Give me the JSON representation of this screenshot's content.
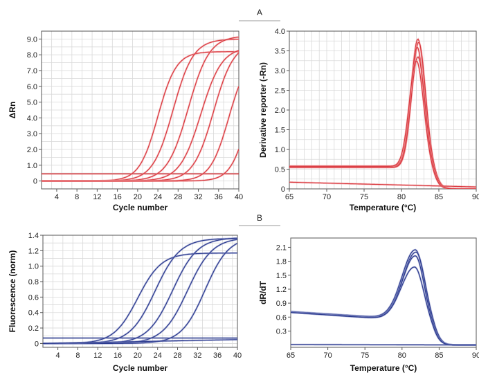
{
  "panel_labels": {
    "a": "A",
    "b": "B"
  },
  "colors": {
    "red": "#d9383e",
    "red_light": "#f09a9c",
    "blue": "#2b3a8e",
    "blue_light": "#8a92c8"
  },
  "chart_data": [
    {
      "id": "a_amplification",
      "type": "line",
      "title": "",
      "xlabel": "Cycle number",
      "ylabel": "ΔRn",
      "xlim": [
        1,
        40
      ],
      "ylim": [
        -0.5,
        9.5
      ],
      "xticks": [
        4,
        8,
        12,
        16,
        20,
        24,
        28,
        32,
        36,
        40
      ],
      "yticks": [
        0,
        1.0,
        2.0,
        3.0,
        4.0,
        5.0,
        6.0,
        7.0,
        8.0,
        9.0
      ],
      "ytick_labels": [
        "0",
        "1.0",
        "2.0",
        "3.0",
        "4.0",
        "5.0",
        "6.0",
        "7.0",
        "8.0",
        "9.0"
      ],
      "grid": true,
      "threshold": 0.45,
      "series": [
        {
          "kind": "sigmoid",
          "top": 8.2,
          "mid": 24.0,
          "k": 0.55
        },
        {
          "kind": "sigmoid",
          "top": 9.0,
          "mid": 27.0,
          "k": 0.5
        },
        {
          "kind": "sigmoid",
          "top": 9.2,
          "mid": 30.0,
          "k": 0.48
        },
        {
          "kind": "sigmoid",
          "top": 8.5,
          "mid": 32.5,
          "k": 0.48
        },
        {
          "kind": "sigmoid",
          "top": 8.8,
          "mid": 35.0,
          "k": 0.5
        },
        {
          "kind": "sigmoid",
          "top": 8.0,
          "mid": 38.0,
          "k": 0.55
        },
        {
          "kind": "sigmoid",
          "top": 7.0,
          "mid": 41.5,
          "k": 0.6
        }
      ]
    },
    {
      "id": "a_melt",
      "type": "line",
      "title": "",
      "xlabel": "Temperature (°C)",
      "ylabel": "Derivative reporter (-Rn)",
      "xlim": [
        65,
        90
      ],
      "ylim": [
        0,
        4.0
      ],
      "xticks": [
        65,
        70,
        75,
        80,
        85,
        90
      ],
      "yticks": [
        0,
        0.5,
        1.0,
        1.5,
        2.0,
        2.5,
        3.0,
        3.5,
        4.0
      ],
      "ytick_labels": [
        "0",
        "0.5",
        "1.0",
        "1.5",
        "2.0",
        "2.5",
        "3.0",
        "3.5",
        "4.0"
      ],
      "grid": true,
      "series": [
        {
          "kind": "melt",
          "base": 0.58,
          "peak": 3.8,
          "center": 82.2,
          "width": 1.3
        },
        {
          "kind": "melt",
          "base": 0.55,
          "peak": 3.72,
          "center": 82.3,
          "width": 1.3
        },
        {
          "kind": "melt",
          "base": 0.56,
          "peak": 3.6,
          "center": 82.1,
          "width": 1.25
        },
        {
          "kind": "melt",
          "base": 0.54,
          "peak": 3.35,
          "center": 82.2,
          "width": 1.3
        },
        {
          "kind": "melt",
          "base": 0.57,
          "peak": 3.25,
          "center": 82.0,
          "width": 1.35
        },
        {
          "kind": "flat",
          "start": 0.17,
          "end": 0.05
        }
      ]
    },
    {
      "id": "b_amplification",
      "type": "line",
      "title": "",
      "xlabel": "Cycle number",
      "ylabel": "Fluorescence (norm)",
      "xlim": [
        1,
        40
      ],
      "ylim": [
        -0.05,
        1.4
      ],
      "xticks": [
        4,
        8,
        12,
        16,
        20,
        24,
        28,
        32,
        36,
        40
      ],
      "yticks": [
        0,
        0.2,
        0.4,
        0.6,
        0.8,
        1.0,
        1.2,
        1.4
      ],
      "ytick_labels": [
        "0",
        "0.2",
        "0.4",
        "0.6",
        "0.8",
        "1.0",
        "1.2",
        "1.4"
      ],
      "grid": true,
      "threshold": 0.07,
      "series": [
        {
          "kind": "sigmoid",
          "top": 1.17,
          "mid": 20.0,
          "k": 0.42
        },
        {
          "kind": "sigmoid",
          "top": 1.36,
          "mid": 23.5,
          "k": 0.4
        },
        {
          "kind": "sigmoid",
          "top": 1.37,
          "mid": 27.0,
          "k": 0.4
        },
        {
          "kind": "sigmoid",
          "top": 1.37,
          "mid": 30.0,
          "k": 0.4
        },
        {
          "kind": "sigmoid",
          "top": 1.38,
          "mid": 33.5,
          "k": 0.42
        },
        {
          "kind": "flat",
          "start": 0.0,
          "end": 0.05
        }
      ]
    },
    {
      "id": "b_melt",
      "type": "line",
      "title": "",
      "xlabel": "Temperature (°C)",
      "ylabel": "dR/dT",
      "xlim": [
        65,
        90
      ],
      "ylim": [
        -0.05,
        2.3
      ],
      "xticks": [
        65,
        70,
        75,
        80,
        85,
        90
      ],
      "yticks": [
        0.3,
        0.6,
        0.9,
        1.2,
        1.5,
        1.8,
        2.1
      ],
      "ytick_labels": [
        "0.3",
        "0.6",
        "0.9",
        "1.2",
        "1.5",
        "1.8",
        "2.1"
      ],
      "grid": false,
      "series": [
        {
          "kind": "melt2",
          "base_start": 0.72,
          "base_end": 0.58,
          "peak": 2.05,
          "center": 81.8,
          "width": 1.6
        },
        {
          "kind": "melt2",
          "base_start": 0.71,
          "base_end": 0.57,
          "peak": 2.0,
          "center": 81.9,
          "width": 1.6
        },
        {
          "kind": "melt2",
          "base_start": 0.7,
          "base_end": 0.56,
          "peak": 1.92,
          "center": 81.8,
          "width": 1.55
        },
        {
          "kind": "melt2",
          "base_start": 0.7,
          "base_end": 0.55,
          "peak": 1.68,
          "center": 81.7,
          "width": 1.6
        },
        {
          "kind": "flat",
          "start": 0.01,
          "end": 0.0
        }
      ]
    }
  ],
  "tick_labels_x_a": [
    "4",
    "8",
    "12",
    "16",
    "20",
    "24",
    "28",
    "32",
    "36",
    "40"
  ],
  "tick_labels_x_melt": [
    "65",
    "70",
    "75",
    "80",
    "85",
    "90"
  ]
}
